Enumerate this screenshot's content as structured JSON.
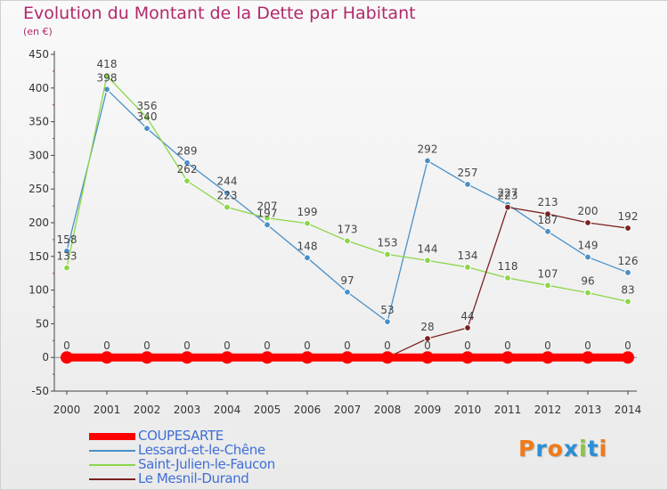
{
  "title": "Evolution du Montant de la Dette par Habitant",
  "subtitle": "(en €)",
  "brand": {
    "letters": [
      "P",
      "r",
      "o",
      "x",
      "i",
      "t",
      "i"
    ],
    "colors": [
      "#f07a1a",
      "#2a8fd6",
      "#f07a1a",
      "#2a8fd6",
      "#8cc63e",
      "#2a8fd6",
      "#f07a1a"
    ]
  },
  "chart_data": {
    "type": "line",
    "title": "Evolution du Montant de la Dette par Habitant",
    "subtitle": "(en €)",
    "x": [
      "2000",
      "2001",
      "2002",
      "2003",
      "2004",
      "2005",
      "2006",
      "2007",
      "2008",
      "2009",
      "2010",
      "2011",
      "2012",
      "2013",
      "2014"
    ],
    "ylim": [
      -50,
      450
    ],
    "yticks": [
      -50,
      0,
      50,
      100,
      150,
      200,
      250,
      300,
      350,
      400,
      450
    ],
    "grid": false,
    "legend_position": "bottom",
    "series": [
      {
        "name": "COUPESARTE",
        "color": "#ff0000",
        "thick": true,
        "values": [
          0,
          0,
          0,
          0,
          0,
          0,
          0,
          0,
          0,
          0,
          0,
          0,
          0,
          0,
          0
        ],
        "labels": [
          null,
          null,
          null,
          null,
          null,
          null,
          null,
          null,
          null,
          "0",
          "0",
          "0",
          "0",
          "0",
          "0"
        ]
      },
      {
        "name": "Lessard-et-le-Chêne",
        "color": "#4a90c8",
        "values": [
          158,
          398,
          340,
          289,
          244,
          197,
          148,
          97,
          53,
          292,
          257,
          227,
          187,
          149,
          126
        ],
        "labels": [
          "158",
          "398",
          "340",
          "289",
          "244",
          "197",
          "148",
          "97",
          "53",
          "292",
          "257",
          "227",
          "187",
          "149",
          "126"
        ]
      },
      {
        "name": "Saint-Julien-le-Faucon",
        "color": "#8cd64a",
        "values": [
          133,
          418,
          356,
          262,
          223,
          207,
          199,
          173,
          153,
          144,
          134,
          118,
          107,
          96,
          83
        ],
        "labels": [
          "133",
          "418",
          "356",
          "262",
          "223",
          "207",
          "199",
          "173",
          "153",
          "144",
          "134",
          "118",
          "107",
          "96",
          "83"
        ]
      },
      {
        "name": "Le Mesnil-Durand",
        "color": "#7a2222",
        "values": [
          0,
          0,
          0,
          0,
          0,
          0,
          0,
          0,
          0,
          28,
          44,
          223,
          213,
          200,
          192
        ],
        "labels": [
          "0",
          "0",
          "0",
          "0",
          "0",
          "0",
          "0",
          "0",
          "0",
          "28",
          "44",
          "223",
          "213",
          "200",
          "192"
        ]
      }
    ]
  }
}
